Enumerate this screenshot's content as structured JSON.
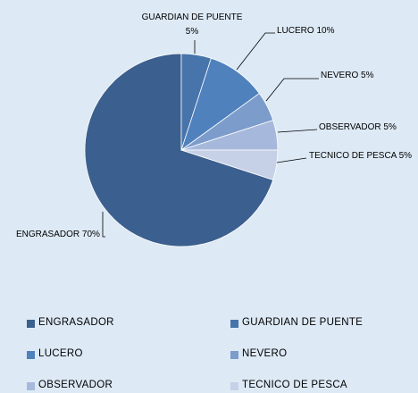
{
  "chart_data": {
    "type": "pie",
    "categories": [
      "ENGRASADOR",
      "GUARDIAN DE PUENTE",
      "LUCERO",
      "NEVERO",
      "OBSERVADOR",
      "TECNICO DE PESCA"
    ],
    "values": [
      70,
      5,
      10,
      5,
      5,
      5
    ],
    "value_labels": [
      "ENGRASADOR 70%",
      "GUARDIAN DE PUENTE 5%",
      "LUCERO 10%",
      "NEVERO 5%",
      "OBSERVADOR 5%",
      "TECNICO DE PESCA 5%"
    ],
    "colors": [
      "#3b5f8e",
      "#4774ab",
      "#4f81bd",
      "#7c9ccb",
      "#a6b9dc",
      "#c6d1e7"
    ],
    "legend": "bottom"
  }
}
